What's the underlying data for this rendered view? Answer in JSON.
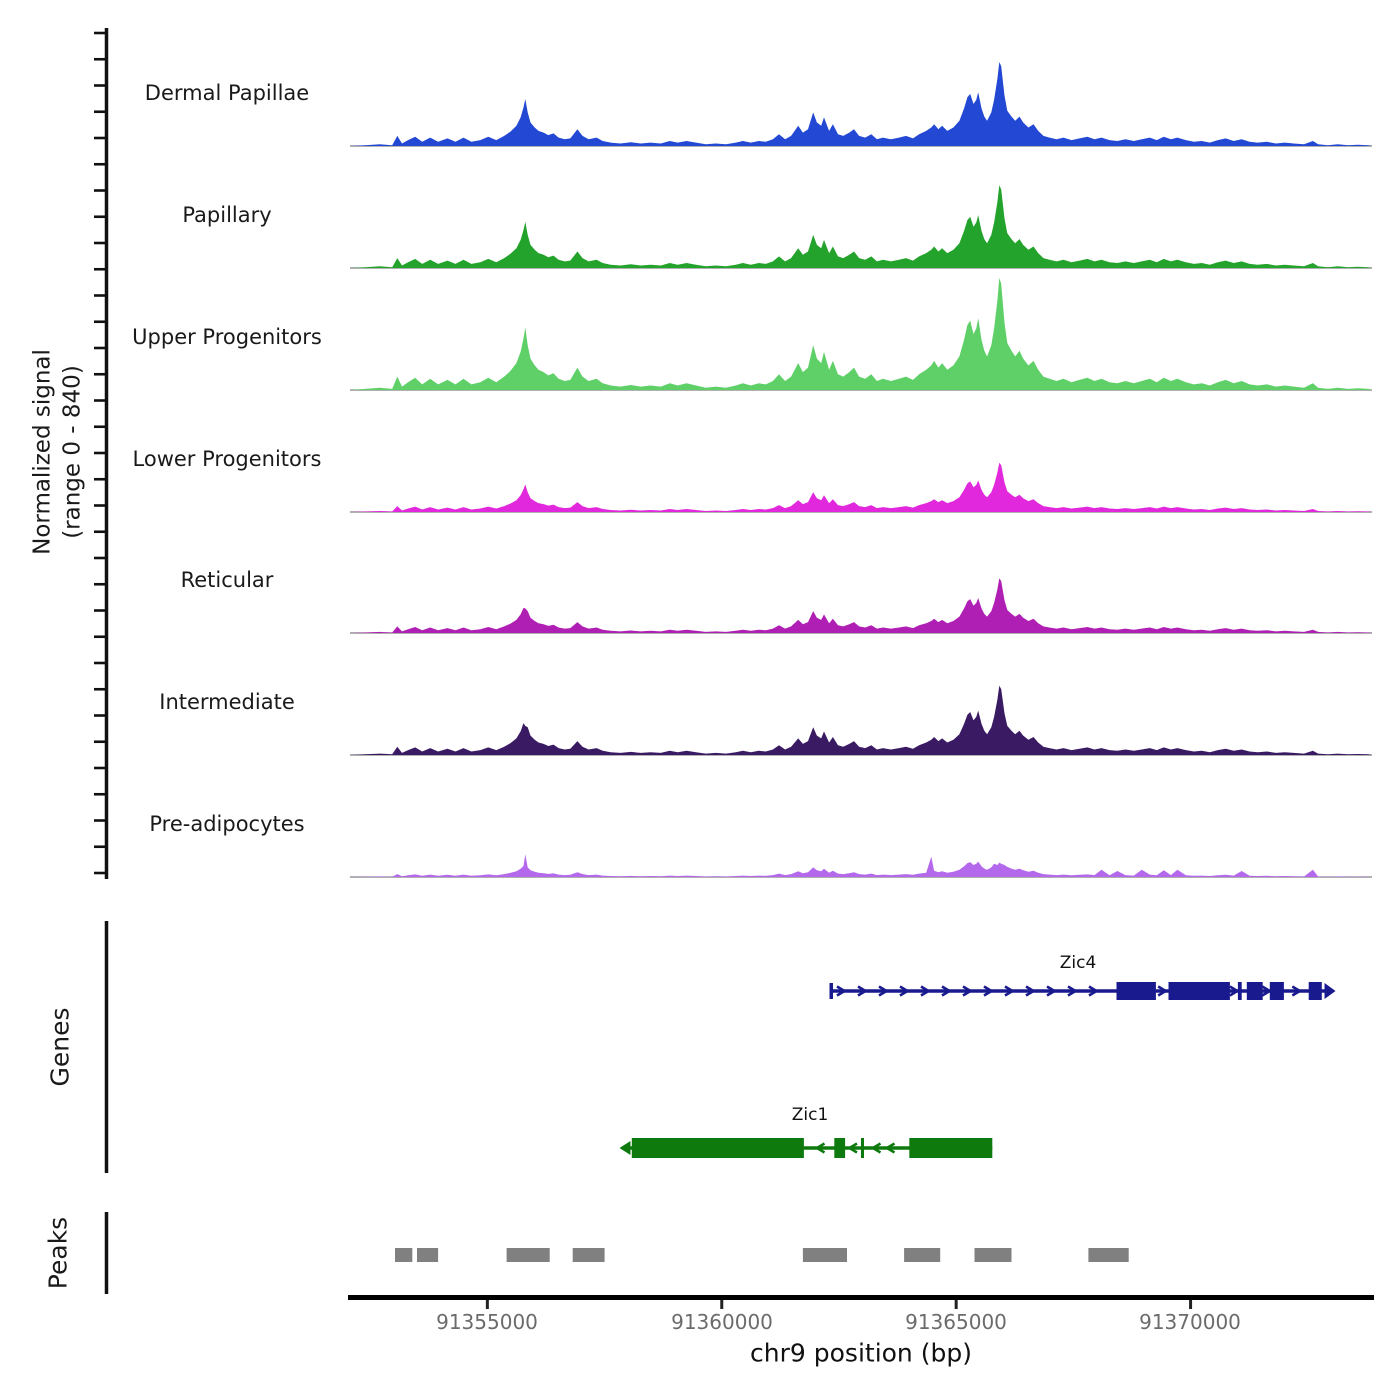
{
  "figure": {
    "y_axis_label_line1": "Normalized signal",
    "y_axis_label_line2": "(range 0 - 840)",
    "genes_section_label": "Genes",
    "peaks_section_label": "Peaks",
    "x_axis_label": "chr9 position (bp)"
  },
  "chart_data": {
    "type": "area",
    "title": "",
    "xlabel": "chr9 position (bp)",
    "ylabel": "Normalized signal (range 0 - 840)",
    "x_range_bp": [
      91352070,
      91373870
    ],
    "y_range": [
      0,
      840
    ],
    "grid": false,
    "x_ticks": [
      {
        "bp": 91355000,
        "label": "91355000"
      },
      {
        "bp": 91360000,
        "label": "91360000"
      },
      {
        "bp": 91365000,
        "label": "91365000"
      },
      {
        "bp": 91370000,
        "label": "91370000"
      }
    ],
    "profile_bp_rel": [
      [
        91352070,
        0
      ],
      [
        91352390,
        0.01
      ],
      [
        91352710,
        0.02
      ],
      [
        91352970,
        0.01
      ],
      [
        91353080,
        0.12
      ],
      [
        91353180,
        0.03
      ],
      [
        91353310,
        0.07
      ],
      [
        91353460,
        0.11
      ],
      [
        91353610,
        0.05
      ],
      [
        91353780,
        0.1
      ],
      [
        91353950,
        0.05
      ],
      [
        91354150,
        0.09
      ],
      [
        91354320,
        0.05
      ],
      [
        91354490,
        0.1
      ],
      [
        91354660,
        0.05
      ],
      [
        91354850,
        0.07
      ],
      [
        91355020,
        0.11
      ],
      [
        91355190,
        0.07
      ],
      [
        91355360,
        0.12
      ],
      [
        91355490,
        0.17
      ],
      [
        91355620,
        0.24
      ],
      [
        91355710,
        0.34
      ],
      [
        91355770,
        0.46
      ],
      [
        91355810,
        0.56
      ],
      [
        91355860,
        0.4
      ],
      [
        91355920,
        0.28
      ],
      [
        91356010,
        0.22
      ],
      [
        91356090,
        0.18
      ],
      [
        91356200,
        0.16
      ],
      [
        91356300,
        0.13
      ],
      [
        91356410,
        0.15
      ],
      [
        91356520,
        0.1
      ],
      [
        91356650,
        0.08
      ],
      [
        91356770,
        0.09
      ],
      [
        91356920,
        0.2
      ],
      [
        91357030,
        0.12
      ],
      [
        91357160,
        0.08
      ],
      [
        91357330,
        0.1
      ],
      [
        91357460,
        0.06
      ],
      [
        91357630,
        0.04
      ],
      [
        91357840,
        0.03
      ],
      [
        91358060,
        0.045
      ],
      [
        91358270,
        0.03
      ],
      [
        91358480,
        0.04
      ],
      [
        91358700,
        0.03
      ],
      [
        91358890,
        0.06
      ],
      [
        91359060,
        0.04
      ],
      [
        91359250,
        0.06
      ],
      [
        91359450,
        0.04
      ],
      [
        91359660,
        0.02
      ],
      [
        91359870,
        0.03
      ],
      [
        91360090,
        0.02
      ],
      [
        91360300,
        0.04
      ],
      [
        91360450,
        0.06
      ],
      [
        91360620,
        0.04
      ],
      [
        91360790,
        0.06
      ],
      [
        91360940,
        0.05
      ],
      [
        91361090,
        0.08
      ],
      [
        91361220,
        0.14
      ],
      [
        91361350,
        0.08
      ],
      [
        91361480,
        0.12
      ],
      [
        91361630,
        0.24
      ],
      [
        91361730,
        0.16
      ],
      [
        91361840,
        0.2
      ],
      [
        91361950,
        0.4
      ],
      [
        91362030,
        0.28
      ],
      [
        91362120,
        0.24
      ],
      [
        91362180,
        0.34
      ],
      [
        91362290,
        0.18
      ],
      [
        91362370,
        0.26
      ],
      [
        91362480,
        0.14
      ],
      [
        91362590,
        0.12
      ],
      [
        91362720,
        0.16
      ],
      [
        91362820,
        0.2
      ],
      [
        91362930,
        0.12
      ],
      [
        91363060,
        0.1
      ],
      [
        91363190,
        0.14
      ],
      [
        91363310,
        0.08
      ],
      [
        91363440,
        0.1
      ],
      [
        91363610,
        0.08
      ],
      [
        91363780,
        0.1
      ],
      [
        91363930,
        0.12
      ],
      [
        91364080,
        0.09
      ],
      [
        91364210,
        0.14
      ],
      [
        91364360,
        0.18
      ],
      [
        91364470,
        0.22
      ],
      [
        91364530,
        0.26
      ],
      [
        91364620,
        0.2
      ],
      [
        91364700,
        0.24
      ],
      [
        91364810,
        0.18
      ],
      [
        91364940,
        0.22
      ],
      [
        91365070,
        0.3
      ],
      [
        91365170,
        0.45
      ],
      [
        91365240,
        0.58
      ],
      [
        91365300,
        0.62
      ],
      [
        91365370,
        0.5
      ],
      [
        91365430,
        0.55
      ],
      [
        91365470,
        0.64
      ],
      [
        91365540,
        0.45
      ],
      [
        91365600,
        0.35
      ],
      [
        91365660,
        0.3
      ],
      [
        91365750,
        0.4
      ],
      [
        91365810,
        0.55
      ],
      [
        91365880,
        0.8
      ],
      [
        91365920,
        1.0
      ],
      [
        91365960,
        0.95
      ],
      [
        91366030,
        0.6
      ],
      [
        91366090,
        0.42
      ],
      [
        91366180,
        0.35
      ],
      [
        91366260,
        0.3
      ],
      [
        91366350,
        0.35
      ],
      [
        91366430,
        0.28
      ],
      [
        91366540,
        0.22
      ],
      [
        91366650,
        0.26
      ],
      [
        91366750,
        0.18
      ],
      [
        91366860,
        0.12
      ],
      [
        91366990,
        0.1
      ],
      [
        91367140,
        0.08
      ],
      [
        91367290,
        0.1
      ],
      [
        91367460,
        0.07
      ],
      [
        91367630,
        0.09
      ],
      [
        91367800,
        0.11
      ],
      [
        91367950,
        0.08
      ],
      [
        91368100,
        0.1
      ],
      [
        91368270,
        0.07
      ],
      [
        91368440,
        0.06
      ],
      [
        91368610,
        0.08
      ],
      [
        91368790,
        0.06
      ],
      [
        91368960,
        0.08
      ],
      [
        91369130,
        0.1
      ],
      [
        91369280,
        0.07
      ],
      [
        91369430,
        0.11
      ],
      [
        91369580,
        0.08
      ],
      [
        91369720,
        0.1
      ],
      [
        91369900,
        0.07
      ],
      [
        91370070,
        0.05
      ],
      [
        91370240,
        0.06
      ],
      [
        91370410,
        0.04
      ],
      [
        91370580,
        0.07
      ],
      [
        91370750,
        0.09
      ],
      [
        91370920,
        0.06
      ],
      [
        91371090,
        0.08
      ],
      [
        91371260,
        0.05
      ],
      [
        91371430,
        0.04
      ],
      [
        91371630,
        0.05
      ],
      [
        91371820,
        0.03
      ],
      [
        91372010,
        0.04
      ],
      [
        91372200,
        0.03
      ],
      [
        91372420,
        0.02
      ],
      [
        91372610,
        0.06
      ],
      [
        91372720,
        0.02
      ],
      [
        91372930,
        0.01
      ],
      [
        91373140,
        0.02
      ],
      [
        91373360,
        0.01
      ],
      [
        91373570,
        0.015
      ],
      [
        91373790,
        0.01
      ],
      [
        91373870,
        0
      ]
    ],
    "series": [
      {
        "name": "Dermal Papillae",
        "color": "#2348d4",
        "max_value": 630,
        "overrides": []
      },
      {
        "name": "Papillary",
        "color": "#23a32b",
        "max_value": 620,
        "overrides": []
      },
      {
        "name": "Upper Progenitors",
        "color": "#5fd068",
        "max_value": 840,
        "overrides": []
      },
      {
        "name": "Lower Progenitors",
        "color": "#e228dc",
        "max_value": 370,
        "overrides": []
      },
      {
        "name": "Reticular",
        "color": "#b01fb4",
        "max_value": 410,
        "overrides": [
          [
            91355810,
            0.45
          ]
        ]
      },
      {
        "name": "Intermediate",
        "color": "#3a1a63",
        "max_value": 520,
        "overrides": [
          [
            91355810,
            0.42
          ]
        ]
      },
      {
        "name": "Pre-adipocytes",
        "color": "#b468ec",
        "max_value": 180,
        "overrides": [
          [
            91355810,
            0.95
          ],
          [
            91365880,
            0.5
          ],
          [
            91365920,
            0.6
          ],
          [
            91365960,
            0.55
          ],
          [
            91366030,
            0.5
          ],
          [
            91364470,
            0.85
          ],
          [
            91368100,
            0.3
          ],
          [
            91368440,
            0.25
          ],
          [
            91368960,
            0.3
          ],
          [
            91369430,
            0.28
          ],
          [
            91369720,
            0.3
          ],
          [
            91371090,
            0.25
          ],
          [
            91372610,
            0.3
          ]
        ]
      }
    ],
    "genes": [
      {
        "name": "Zic4",
        "strand": "+",
        "color": "#1a1a8f",
        "start_bp": 91362330,
        "end_bp": 91372900,
        "exons": [
          [
            91368420,
            91369260
          ],
          [
            91369530,
            91370840
          ],
          [
            91371010,
            91371090
          ],
          [
            91371200,
            91371540
          ],
          [
            91371690,
            91371990
          ],
          [
            91372520,
            91372800
          ]
        ]
      },
      {
        "name": "Zic1",
        "strand": "-",
        "color": "#0e7a0e",
        "start_bp": 91358010,
        "end_bp": 91365770,
        "exons": [
          [
            91358080,
            91361750
          ],
          [
            91362400,
            91362630
          ],
          [
            91362970,
            91363010
          ],
          [
            91364000,
            91365770
          ]
        ]
      }
    ],
    "peaks_bp": [
      [
        91353030,
        91353400
      ],
      [
        91353500,
        91353950
      ],
      [
        91355410,
        91356330
      ],
      [
        91356820,
        91357500
      ],
      [
        91361730,
        91362670
      ],
      [
        91363890,
        91364660
      ],
      [
        91365390,
        91366180
      ],
      [
        91367820,
        91368680
      ]
    ],
    "peaks_color": "#808080"
  }
}
